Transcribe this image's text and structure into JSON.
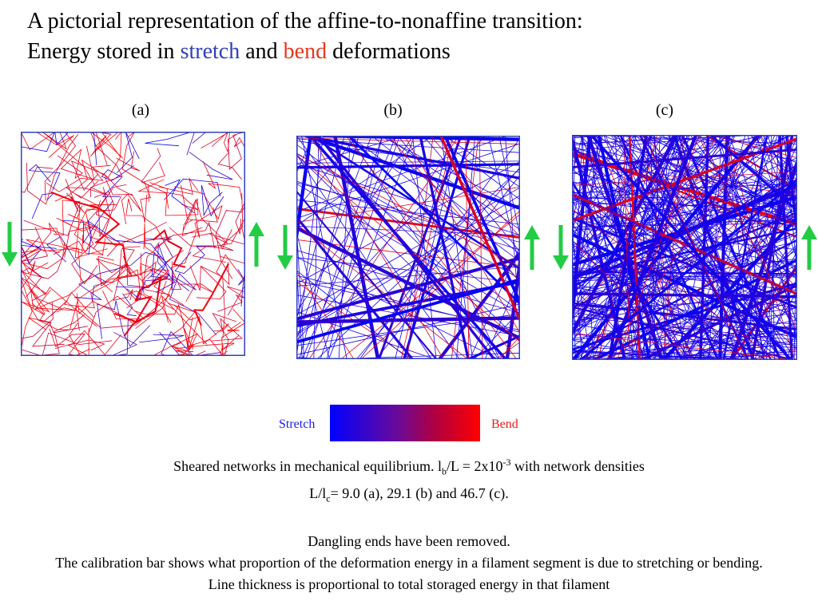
{
  "title": {
    "line1": "A pictorial representation of the affine-to-nonaffine transition:",
    "line2_prefix": "Energy stored in ",
    "line2_stretch": "stretch",
    "line2_and": " and ",
    "line2_bend": "bend",
    "line2_suffix": " deformations"
  },
  "panels": [
    {
      "label": "(a)",
      "density": 9.0,
      "dominant": "bend"
    },
    {
      "label": "(b)",
      "density": 29.1,
      "dominant": "stretch"
    },
    {
      "label": "(c)",
      "density": 46.7,
      "dominant": "stretch"
    }
  ],
  "colors": {
    "stretch": "#0000ff",
    "bend": "#ff0000",
    "arrow": "#22cc44",
    "frame": "#3040c0"
  },
  "calibration": {
    "left_label": "Stretch",
    "right_label": "Bend"
  },
  "caption": {
    "line1_a": "Sheared networks in mechanical equilibrium. l",
    "line1_sub": "b",
    "line1_b": "/L = 2x10",
    "line1_sup": "-3",
    "line1_c": " with network densities",
    "line2_a": "L/l",
    "line2_sub": "c",
    "line2_b": "= 9.0 (a), 29.1 (b) and 46.7 (c).",
    "line3": "Dangling ends have been removed.",
    "line4": "The calibration bar shows what proportion of the deformation energy in a filament segment is due to stretching or bending.",
    "line5": "Line thickness is proportional to total storaged energy in that filament"
  }
}
